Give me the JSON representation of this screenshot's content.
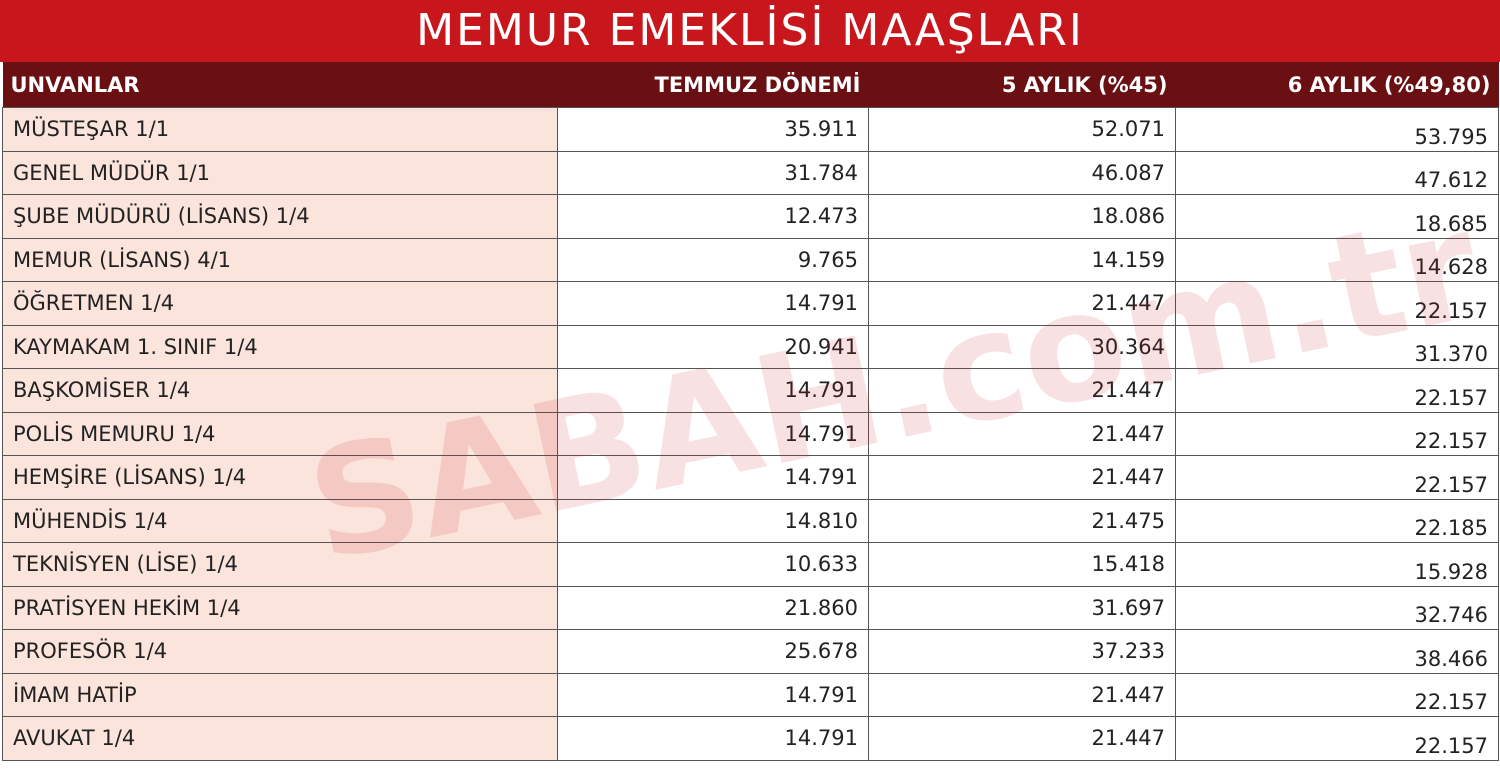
{
  "title": "MEMUR EMEKLİSİ MAAŞLARI",
  "watermark": "SABAH.com.tr",
  "table": {
    "headers": [
      "UNVANLAR",
      "TEMMUZ DÖNEMİ",
      "5 AYLIK (%45)",
      "6 AYLIK (%49,80)"
    ],
    "rows": [
      [
        "MÜSTEŞAR 1/1",
        "35.911",
        "52.071",
        "53.795"
      ],
      [
        "GENEL MÜDÜR 1/1",
        "31.784",
        "46.087",
        "47.612"
      ],
      [
        "ŞUBE MÜDÜRÜ (LİSANS) 1/4",
        "12.473",
        "18.086",
        "18.685"
      ],
      [
        "MEMUR (LİSANS) 4/1",
        "9.765",
        "14.159",
        "14.628"
      ],
      [
        "ÖĞRETMEN 1/4",
        "14.791",
        "21.447",
        "22.157"
      ],
      [
        "KAYMAKAM 1. SINIF 1/4",
        "20.941",
        "30.364",
        "31.370"
      ],
      [
        "BAŞKOMİSER 1/4",
        "14.791",
        "21.447",
        "22.157"
      ],
      [
        "POLİS MEMURU 1/4",
        "14.791",
        "21.447",
        "22.157"
      ],
      [
        "HEMŞİRE (LİSANS) 1/4",
        "14.791",
        "21.447",
        "22.157"
      ],
      [
        "MÜHENDİS 1/4",
        "14.810",
        "21.475",
        "22.185"
      ],
      [
        "TEKNİSYEN (LİSE) 1/4",
        "10.633",
        "15.418",
        "15.928"
      ],
      [
        "PRATİSYEN HEKİM 1/4",
        "21.860",
        "31.697",
        "32.746"
      ],
      [
        "PROFESÖR 1/4",
        "25.678",
        "37.233",
        "38.466"
      ],
      [
        "İMAM HATİP",
        "14.791",
        "21.447",
        "22.157"
      ],
      [
        "AVUKAT 1/4",
        "14.791",
        "21.447",
        "22.157"
      ]
    ]
  }
}
